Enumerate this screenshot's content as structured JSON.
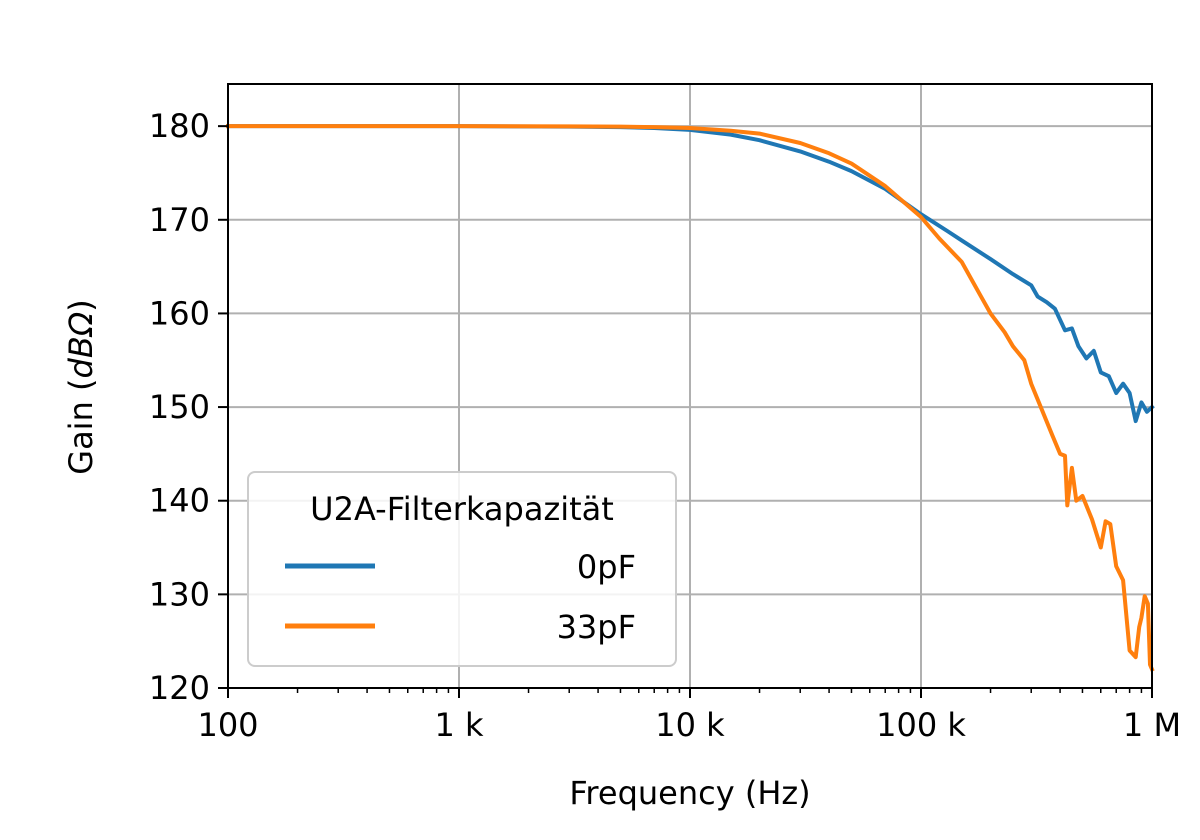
{
  "chart_data": {
    "type": "line",
    "xlabel": "Frequency (Hz)",
    "ylabel_prefix": "Gain (",
    "ylabel_unit": "dBΩ",
    "ylabel_suffix": ")",
    "xscale": "log",
    "xlim": [
      100,
      1000000
    ],
    "ylim": [
      120,
      184.5
    ],
    "x_ticks": [
      {
        "value": 100,
        "label": "100"
      },
      {
        "value": 1000,
        "label": "1 k"
      },
      {
        "value": 10000,
        "label": "10 k"
      },
      {
        "value": 100000,
        "label": "100 k"
      },
      {
        "value": 1000000,
        "label": "1 M"
      }
    ],
    "y_ticks": [
      120,
      130,
      140,
      150,
      160,
      170,
      180
    ],
    "grid": true,
    "legend": {
      "title": "U2A-Filterkapazität",
      "placement": "lower-left"
    },
    "series": [
      {
        "name": "0pF",
        "color": "#1f77b4",
        "points": [
          [
            100,
            180
          ],
          [
            1000,
            180
          ],
          [
            3000,
            179.95
          ],
          [
            5000,
            179.9
          ],
          [
            7000,
            179.8
          ],
          [
            10000,
            179.6
          ],
          [
            15000,
            179.1
          ],
          [
            20000,
            178.5
          ],
          [
            30000,
            177.3
          ],
          [
            40000,
            176.2
          ],
          [
            50000,
            175.2
          ],
          [
            70000,
            173.3
          ],
          [
            100000,
            170.6
          ],
          [
            130000,
            168.8
          ],
          [
            150000,
            167.8
          ],
          [
            200000,
            165.8
          ],
          [
            250000,
            164.2
          ],
          [
            300000,
            163
          ],
          [
            320000,
            161.8
          ],
          [
            350000,
            161.2
          ],
          [
            380000,
            160.5
          ],
          [
            420000,
            158.2
          ],
          [
            450000,
            158.4
          ],
          [
            480000,
            156.5
          ],
          [
            520000,
            155.2
          ],
          [
            560000,
            156
          ],
          [
            600000,
            153.7
          ],
          [
            650000,
            153.3
          ],
          [
            700000,
            151.5
          ],
          [
            750000,
            152.5
          ],
          [
            800000,
            151.5
          ],
          [
            850000,
            148.5
          ],
          [
            900000,
            150.5
          ],
          [
            950000,
            149.5
          ],
          [
            1000000,
            150
          ]
        ]
      },
      {
        "name": "33pF",
        "color": "#ff7f0e",
        "points": [
          [
            100,
            180
          ],
          [
            1000,
            180
          ],
          [
            3000,
            179.97
          ],
          [
            5000,
            179.95
          ],
          [
            7000,
            179.9
          ],
          [
            10000,
            179.8
          ],
          [
            15000,
            179.5
          ],
          [
            20000,
            179.2
          ],
          [
            30000,
            178.2
          ],
          [
            40000,
            177.1
          ],
          [
            50000,
            176
          ],
          [
            70000,
            173.6
          ],
          [
            100000,
            170.3
          ],
          [
            120000,
            168
          ],
          [
            150000,
            165.5
          ],
          [
            180000,
            162
          ],
          [
            200000,
            160
          ],
          [
            230000,
            158
          ],
          [
            250000,
            156.5
          ],
          [
            280000,
            155
          ],
          [
            300000,
            152.5
          ],
          [
            330000,
            150
          ],
          [
            370000,
            147
          ],
          [
            400000,
            145
          ],
          [
            420000,
            144.8
          ],
          [
            430000,
            139.5
          ],
          [
            450000,
            143.5
          ],
          [
            470000,
            140
          ],
          [
            500000,
            140.5
          ],
          [
            550000,
            138
          ],
          [
            600000,
            135
          ],
          [
            630000,
            137.8
          ],
          [
            660000,
            137.5
          ],
          [
            700000,
            133
          ],
          [
            750000,
            131.5
          ],
          [
            800000,
            124
          ],
          [
            850000,
            123.3
          ],
          [
            880000,
            126.5
          ],
          [
            900000,
            127.5
          ],
          [
            930000,
            129.8
          ],
          [
            960000,
            129
          ],
          [
            980000,
            122.5
          ],
          [
            1000000,
            122
          ]
        ]
      }
    ]
  }
}
